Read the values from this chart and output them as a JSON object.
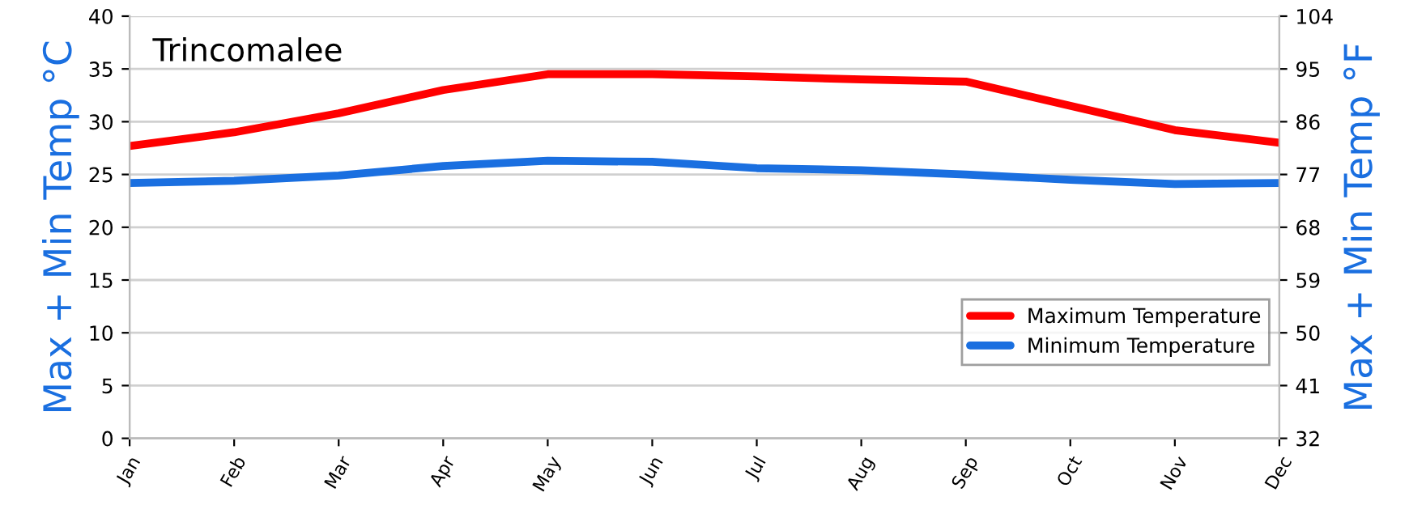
{
  "chart_data": {
    "type": "line",
    "title": "Trincomalee",
    "ylabel": "Max + Min Temp °C",
    "y2label": "Max + Min Temp °F",
    "categories": [
      "Jan",
      "Feb",
      "Mar",
      "Apr",
      "May",
      "Jun",
      "Jul",
      "Aug",
      "Sep",
      "Oct",
      "Nov",
      "Dec"
    ],
    "series": [
      {
        "name": "Maximum Temperature",
        "color": "#ff0000",
        "values": [
          27.7,
          29.0,
          30.8,
          33.0,
          34.5,
          34.5,
          34.3,
          34.0,
          33.8,
          31.5,
          29.2,
          28.0
        ]
      },
      {
        "name": "Minimum Temperature",
        "color": "#1a6fe0",
        "values": [
          24.2,
          24.4,
          24.9,
          25.8,
          26.3,
          26.2,
          25.6,
          25.4,
          25.0,
          24.5,
          24.1,
          24.2
        ]
      }
    ],
    "ylim": [
      0,
      40
    ],
    "yticks": [
      0,
      5,
      10,
      15,
      20,
      25,
      30,
      35,
      40
    ],
    "y2lim": [
      32,
      104
    ],
    "y2ticks": [
      32,
      41,
      50,
      59,
      68,
      77,
      86,
      95,
      104
    ],
    "grid": "y",
    "legend": "bottom right",
    "line_style": "solid",
    "marker": "none"
  }
}
